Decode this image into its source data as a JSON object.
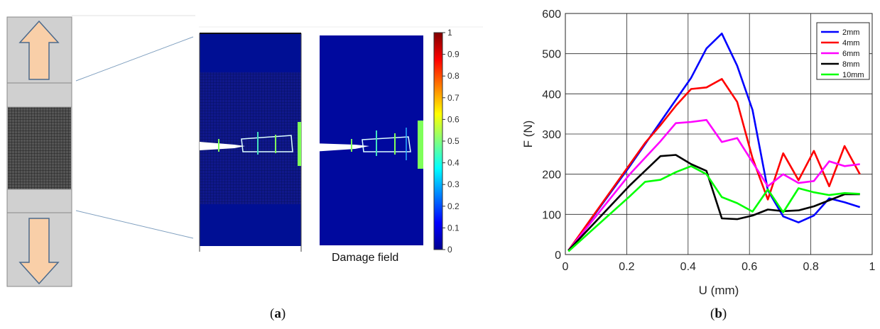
{
  "figure_a": {
    "colorbar_ticks": [
      "1",
      "0.9",
      "0.8",
      "0.7",
      "0.6",
      "0.5",
      "0.4",
      "0.3",
      "0.2",
      "0.1",
      "0"
    ],
    "field_label": "Damage field",
    "caption_open": "(",
    "caption_letter": "a",
    "caption_close": ")"
  },
  "figure_b": {
    "caption_open": "(",
    "caption_letter": "b",
    "caption_close": ")"
  },
  "chart_data": {
    "type": "line",
    "title": "",
    "xlabel": "U (mm)",
    "ylabel": "F (N)",
    "xlim": [
      0,
      1
    ],
    "ylim": [
      0,
      600
    ],
    "xticks": [
      "0",
      "0.2",
      "0.4",
      "0.6",
      "0.8",
      "1"
    ],
    "yticks": [
      "0",
      "100",
      "200",
      "300",
      "400",
      "500",
      "600"
    ],
    "grid": true,
    "legend_position": "top-right",
    "series": [
      {
        "name": "2mm",
        "color": "#0000ff",
        "x": [
          0.01,
          0.21,
          0.31,
          0.41,
          0.46,
          0.51,
          0.56,
          0.61,
          0.66,
          0.71,
          0.76,
          0.81,
          0.86,
          0.91,
          0.96
        ],
        "y": [
          10,
          220,
          330,
          440,
          513,
          550,
          470,
          360,
          160,
          95,
          80,
          97,
          140,
          130,
          118
        ]
      },
      {
        "name": "4mm",
        "color": "#ff0000",
        "x": [
          0.01,
          0.26,
          0.31,
          0.36,
          0.41,
          0.46,
          0.51,
          0.56,
          0.61,
          0.66,
          0.71,
          0.76,
          0.81,
          0.86,
          0.91,
          0.96
        ],
        "y": [
          10,
          278,
          322,
          370,
          412,
          416,
          437,
          380,
          240,
          137,
          252,
          185,
          258,
          170,
          270,
          200
        ]
      },
      {
        "name": "6mm",
        "color": "#ff00ff",
        "x": [
          0.01,
          0.21,
          0.31,
          0.36,
          0.41,
          0.46,
          0.51,
          0.56,
          0.61,
          0.66,
          0.71,
          0.76,
          0.81,
          0.86,
          0.91,
          0.96
        ],
        "y": [
          10,
          200,
          282,
          327,
          330,
          335,
          280,
          290,
          230,
          170,
          200,
          178,
          183,
          232,
          220,
          225
        ]
      },
      {
        "name": "8mm",
        "color": "#000000",
        "x": [
          0.01,
          0.21,
          0.31,
          0.36,
          0.41,
          0.46,
          0.51,
          0.56,
          0.61,
          0.66,
          0.71,
          0.76,
          0.81,
          0.86,
          0.91,
          0.96
        ],
        "y": [
          10,
          172,
          245,
          248,
          225,
          208,
          90,
          88,
          97,
          112,
          108,
          110,
          120,
          135,
          150,
          150
        ]
      },
      {
        "name": "10mm",
        "color": "#00ff00",
        "x": [
          0.01,
          0.21,
          0.26,
          0.31,
          0.36,
          0.41,
          0.46,
          0.51,
          0.56,
          0.61,
          0.66,
          0.71,
          0.76,
          0.81,
          0.86,
          0.91,
          0.96
        ],
        "y": [
          8,
          145,
          181,
          186,
          205,
          220,
          200,
          143,
          128,
          107,
          162,
          105,
          165,
          155,
          148,
          153,
          151
        ]
      }
    ]
  }
}
